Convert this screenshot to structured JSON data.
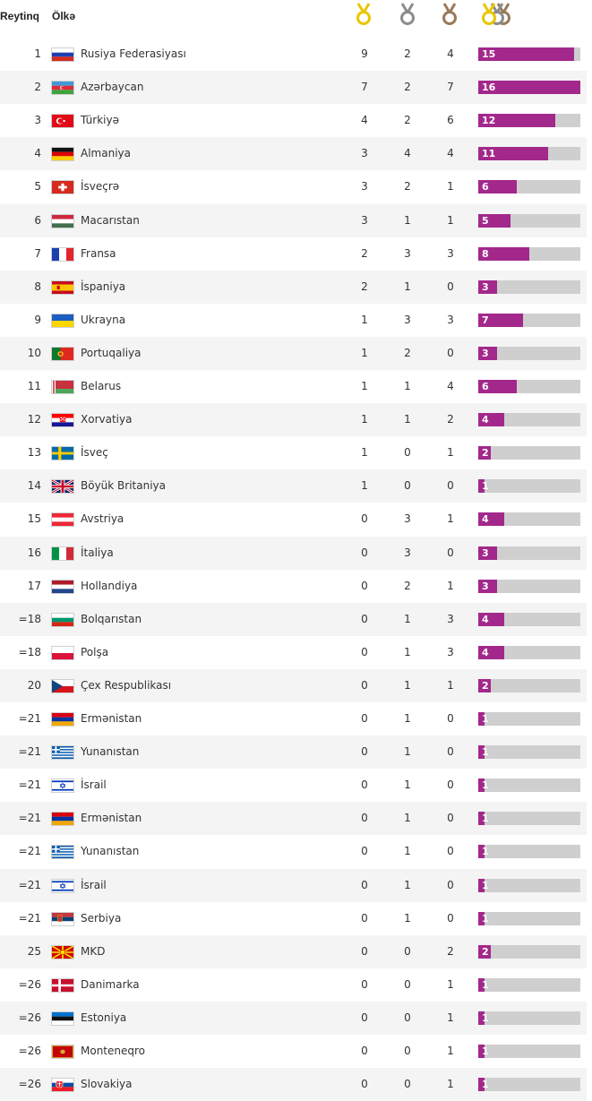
{
  "header": {
    "rank_label": "Reytinq",
    "country_label": "Ölkə",
    "gold_icon": "gold-medal-icon",
    "silver_icon": "silver-medal-icon",
    "bronze_icon": "bronze-medal-icon",
    "total_icon": "all-medals-icon"
  },
  "colors": {
    "gold": "#e9c600",
    "silver": "#8c8c8c",
    "bronze": "#9a7a5a",
    "bar_fill": "#a3288c",
    "bar_bg": "#cfcfcf",
    "stripe": "#f4f4f4"
  },
  "max_total": 16,
  "rows": [
    {
      "rank": "1",
      "country": "Rusiya Federasiyası",
      "flag": "russia",
      "gold": "9",
      "silver": "2",
      "bronze": "4",
      "total": "15"
    },
    {
      "rank": "2",
      "country": "Azərbaycan",
      "flag": "azerbaijan",
      "gold": "7",
      "silver": "2",
      "bronze": "7",
      "total": "16"
    },
    {
      "rank": "3",
      "country": "Türkiyə",
      "flag": "turkey",
      "gold": "4",
      "silver": "2",
      "bronze": "6",
      "total": "12"
    },
    {
      "rank": "4",
      "country": "Almaniya",
      "flag": "germany",
      "gold": "3",
      "silver": "4",
      "bronze": "4",
      "total": "11"
    },
    {
      "rank": "5",
      "country": "İsveçrə",
      "flag": "switzerland",
      "gold": "3",
      "silver": "2",
      "bronze": "1",
      "total": "6"
    },
    {
      "rank": "6",
      "country": "Macarıstan",
      "flag": "hungary",
      "gold": "3",
      "silver": "1",
      "bronze": "1",
      "total": "5"
    },
    {
      "rank": "7",
      "country": "Fransa",
      "flag": "france",
      "gold": "2",
      "silver": "3",
      "bronze": "3",
      "total": "8"
    },
    {
      "rank": "8",
      "country": "İspaniya",
      "flag": "spain",
      "gold": "2",
      "silver": "1",
      "bronze": "0",
      "total": "3"
    },
    {
      "rank": "9",
      "country": "Ukrayna",
      "flag": "ukraine",
      "gold": "1",
      "silver": "3",
      "bronze": "3",
      "total": "7"
    },
    {
      "rank": "10",
      "country": "Portuqaliya",
      "flag": "portugal",
      "gold": "1",
      "silver": "2",
      "bronze": "0",
      "total": "3"
    },
    {
      "rank": "11",
      "country": "Belarus",
      "flag": "belarus",
      "gold": "1",
      "silver": "1",
      "bronze": "4",
      "total": "6"
    },
    {
      "rank": "12",
      "country": "Xorvatiya",
      "flag": "croatia",
      "gold": "1",
      "silver": "1",
      "bronze": "2",
      "total": "4"
    },
    {
      "rank": "13",
      "country": "İsveç",
      "flag": "sweden",
      "gold": "1",
      "silver": "0",
      "bronze": "1",
      "total": "2"
    },
    {
      "rank": "14",
      "country": "Böyük Britaniya",
      "flag": "uk",
      "gold": "1",
      "silver": "0",
      "bronze": "0",
      "total": "1"
    },
    {
      "rank": "15",
      "country": "Avstriya",
      "flag": "austria",
      "gold": "0",
      "silver": "3",
      "bronze": "1",
      "total": "4"
    },
    {
      "rank": "16",
      "country": "İtaliya",
      "flag": "italy",
      "gold": "0",
      "silver": "3",
      "bronze": "0",
      "total": "3"
    },
    {
      "rank": "17",
      "country": "Hollandiya",
      "flag": "netherlands",
      "gold": "0",
      "silver": "2",
      "bronze": "1",
      "total": "3"
    },
    {
      "rank": "=18",
      "country": "Bolqarıstan",
      "flag": "bulgaria",
      "gold": "0",
      "silver": "1",
      "bronze": "3",
      "total": "4"
    },
    {
      "rank": "=18",
      "country": "Polşa",
      "flag": "poland",
      "gold": "0",
      "silver": "1",
      "bronze": "3",
      "total": "4"
    },
    {
      "rank": "20",
      "country": "Çex Respublikası",
      "flag": "czech",
      "gold": "0",
      "silver": "1",
      "bronze": "1",
      "total": "2"
    },
    {
      "rank": "=21",
      "country": "Ermənistan",
      "flag": "armenia",
      "gold": "0",
      "silver": "1",
      "bronze": "0",
      "total": "1"
    },
    {
      "rank": "=21",
      "country": "Yunanıstan",
      "flag": "greece",
      "gold": "0",
      "silver": "1",
      "bronze": "0",
      "total": "1"
    },
    {
      "rank": "=21",
      "country": "İsrail",
      "flag": "israel",
      "gold": "0",
      "silver": "1",
      "bronze": "0",
      "total": "1"
    },
    {
      "rank": "=21",
      "country": "Ermənistan",
      "flag": "armenia",
      "gold": "0",
      "silver": "1",
      "bronze": "0",
      "total": "1"
    },
    {
      "rank": "=21",
      "country": "Yunanıstan",
      "flag": "greece",
      "gold": "0",
      "silver": "1",
      "bronze": "0",
      "total": "1"
    },
    {
      "rank": "=21",
      "country": "İsrail",
      "flag": "israel",
      "gold": "0",
      "silver": "1",
      "bronze": "0",
      "total": "1"
    },
    {
      "rank": "=21",
      "country": "Serbiya",
      "flag": "serbia",
      "gold": "0",
      "silver": "1",
      "bronze": "0",
      "total": "1"
    },
    {
      "rank": "25",
      "country": "MKD",
      "flag": "macedonia",
      "gold": "0",
      "silver": "0",
      "bronze": "2",
      "total": "2"
    },
    {
      "rank": "=26",
      "country": "Danimarka",
      "flag": "denmark",
      "gold": "0",
      "silver": "0",
      "bronze": "1",
      "total": "1"
    },
    {
      "rank": "=26",
      "country": "Estoniya",
      "flag": "estonia",
      "gold": "0",
      "silver": "0",
      "bronze": "1",
      "total": "1"
    },
    {
      "rank": "=26",
      "country": "Monteneqro",
      "flag": "montenegro",
      "gold": "0",
      "silver": "0",
      "bronze": "1",
      "total": "1"
    },
    {
      "rank": "=26",
      "country": "Slovakiya",
      "flag": "slovakia",
      "gold": "0",
      "silver": "0",
      "bronze": "1",
      "total": "1"
    }
  ]
}
